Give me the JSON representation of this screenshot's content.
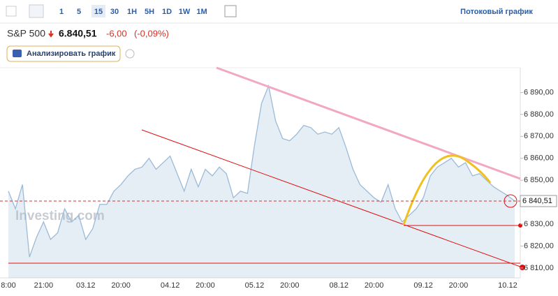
{
  "toolbar": {
    "intervals": [
      "1",
      "5",
      "15",
      "30",
      "1H",
      "5H",
      "1D",
      "1W",
      "1M"
    ],
    "link": "Потоковый график"
  },
  "header": {
    "name": "S&P 500",
    "price": "6.840,51",
    "change": "-6,00",
    "change_pct": "(-0,09%)"
  },
  "ai_button": "Анализировать график",
  "watermark": "Investing.com",
  "chart_data": {
    "type": "area",
    "categories": [
      "8:00",
      null,
      null,
      null,
      null,
      "21:00",
      null,
      null,
      null,
      null,
      null,
      "03.12",
      null,
      null,
      null,
      null,
      "20:00",
      null,
      null,
      null,
      null,
      null,
      null,
      "04.12",
      null,
      null,
      null,
      null,
      "20:00",
      null,
      null,
      null,
      null,
      null,
      null,
      "05.12",
      null,
      null,
      null,
      null,
      "20:00",
      null,
      null,
      null,
      null,
      null,
      null,
      "08.12",
      null,
      null,
      null,
      null,
      "20:00",
      null,
      null,
      null,
      null,
      null,
      null,
      "09.12",
      null,
      null,
      null,
      null,
      "20:00",
      null,
      null,
      null,
      null,
      null,
      null,
      "10.12",
      null
    ],
    "series": [
      {
        "name": "S&P 500",
        "color": "#9bbad8",
        "values": [
          6845,
          6837,
          6848,
          6815,
          6824,
          6831,
          6823,
          6826,
          6837,
          6831,
          6834,
          6823,
          6828,
          6839,
          6839,
          6845,
          6848,
          6852,
          6855,
          6856,
          6860,
          6855,
          6858,
          6861,
          6853,
          6845,
          6855,
          6847,
          6855,
          6852,
          6856,
          6853,
          6842,
          6845,
          6844,
          6866,
          6885,
          6893,
          6877,
          6869,
          6868,
          6871,
          6875,
          6874,
          6871,
          6872,
          6871,
          6874,
          6865,
          6855,
          6848,
          6845,
          6842,
          6840,
          6848,
          6837,
          6831,
          6834,
          6837,
          6842,
          6852,
          6856,
          6858,
          6860,
          6856,
          6858,
          6852,
          6853,
          6850,
          6847,
          6845,
          6843,
          6840.51
        ]
      }
    ],
    "ylim": [
      6805.5,
      6901.3
    ],
    "yticks": [
      {
        "value": 6810,
        "label": "6 810,00"
      },
      {
        "value": 6820,
        "label": "6 820,00"
      },
      {
        "value": 6830,
        "label": "6 830,00"
      },
      {
        "value": 6850,
        "label": "6 850,00"
      },
      {
        "value": 6860,
        "label": "6 860,00"
      },
      {
        "value": 6870,
        "label": "6 870,00"
      },
      {
        "value": 6880,
        "label": "6 880,00"
      },
      {
        "value": 6890,
        "label": "6 890,00"
      }
    ],
    "last_price": {
      "value": 6840.51,
      "label": "6 840,51"
    }
  }
}
